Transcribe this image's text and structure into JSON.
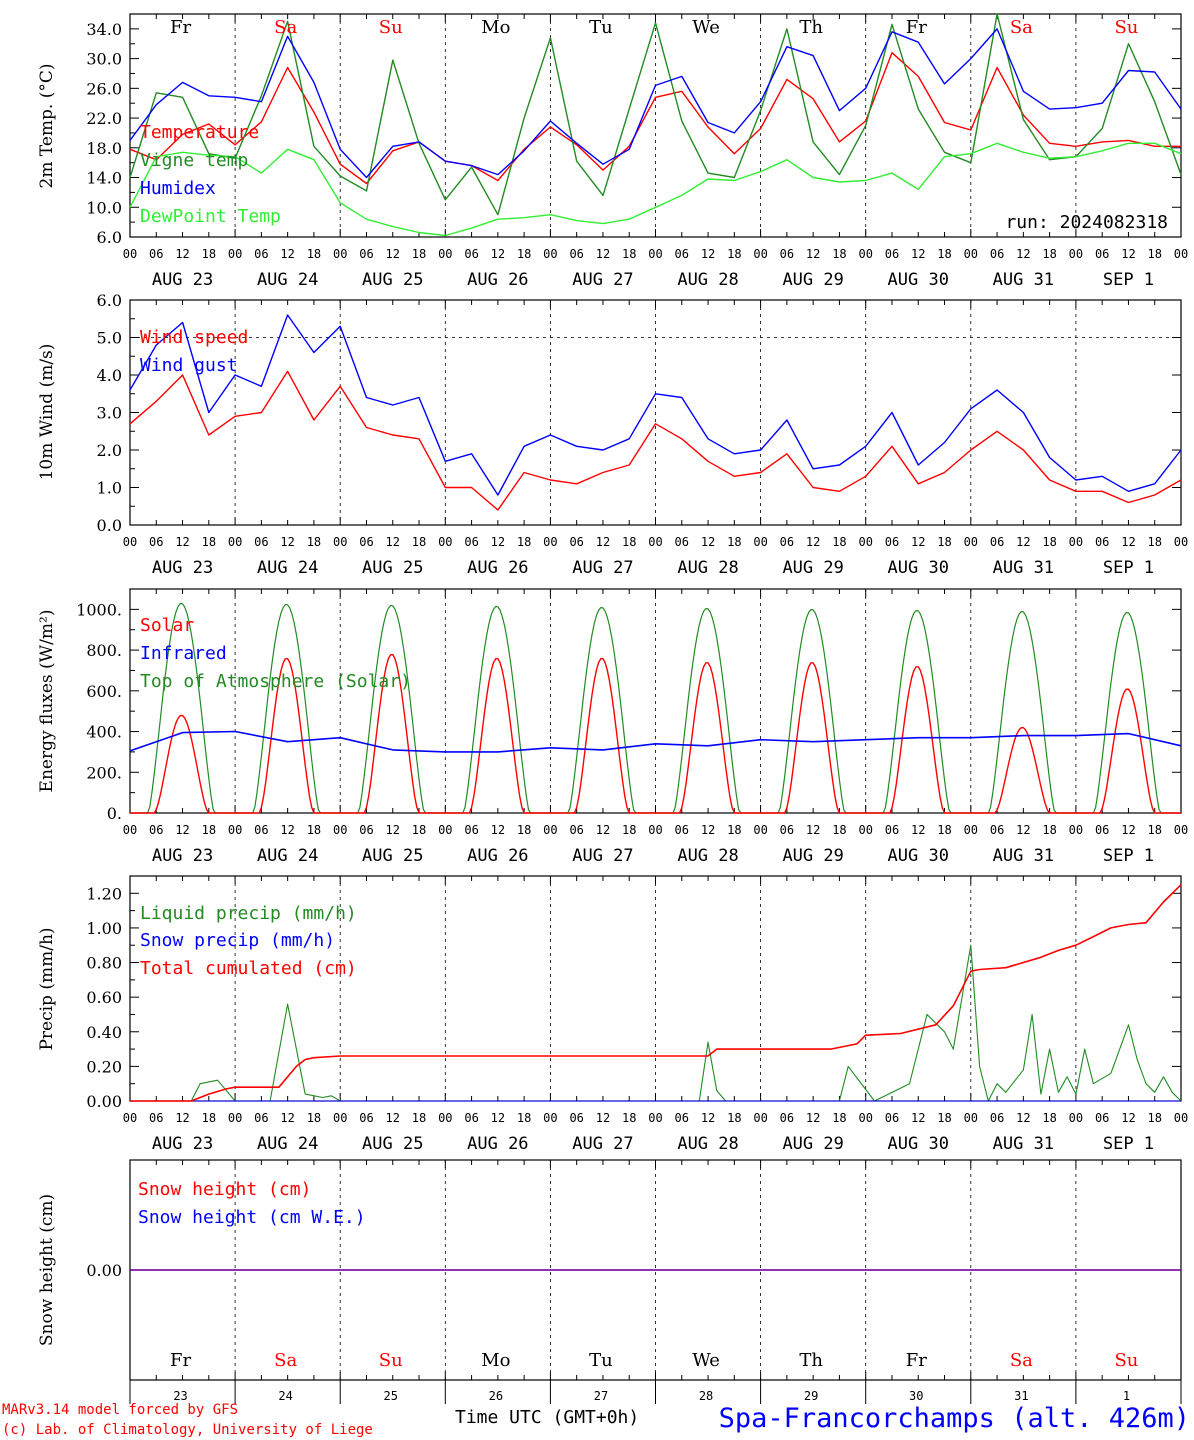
{
  "colors": {
    "red": "#ff0000",
    "green": "#228b22",
    "blue": "#0000ff",
    "lightgreen": "#33ee33",
    "purple": "#7f00a0",
    "black": "#000000"
  },
  "days_of_week": [
    {
      "label": "Fr",
      "color": "black"
    },
    {
      "label": "Sa",
      "color": "red"
    },
    {
      "label": "Su",
      "color": "red"
    },
    {
      "label": "Mo",
      "color": "black"
    },
    {
      "label": "Tu",
      "color": "black"
    },
    {
      "label": "We",
      "color": "black"
    },
    {
      "label": "Th",
      "color": "black"
    },
    {
      "label": "Fr",
      "color": "black"
    },
    {
      "label": "Sa",
      "color": "red"
    },
    {
      "label": "Su",
      "color": "red"
    }
  ],
  "date_labels": [
    "AUG 23",
    "AUG 24",
    "AUG 25",
    "AUG 26",
    "AUG 27",
    "AUG 28",
    "AUG 29",
    "AUG 30",
    "AUG 31",
    "SEP  1"
  ],
  "day_numbers": [
    "23",
    "24",
    "25",
    "26",
    "27",
    "28",
    "29",
    "30",
    "31",
    "1"
  ],
  "hour_labels": [
    "00",
    "06",
    "12",
    "18"
  ],
  "run_label": "run: 2024082318",
  "footer": {
    "model_line": "MARv3.14 model forced by GFS",
    "credit_line": "(c) Lab. of Climatology, University of Liege",
    "time_axis": "Time UTC (GMT+0h)",
    "station": "Spa-Francorchamps (alt. 426m)"
  },
  "chart_data": [
    {
      "type": "line",
      "ylabel": "2m Temp. (°C)",
      "ylim": [
        6,
        36
      ],
      "yticks": [
        "6.0",
        "10.0",
        "14.0",
        "18.0",
        "22.0",
        "26.0",
        "30.0",
        "34.0"
      ],
      "x_unit": "hours since AUG 23 00 UTC",
      "series": [
        {
          "name": "Temperature",
          "color": "red",
          "x": [
            0,
            6,
            12,
            18,
            24,
            30,
            36,
            42,
            48,
            54,
            60,
            66,
            72,
            78,
            84,
            90,
            96,
            102,
            108,
            114,
            120,
            126,
            132,
            138,
            144,
            150,
            156,
            162,
            168,
            174,
            180,
            186,
            192,
            198,
            204,
            210,
            216,
            222,
            228,
            234,
            240
          ],
          "y": [
            17.8,
            16.4,
            19.8,
            21.2,
            18.4,
            21.5,
            28.8,
            22.8,
            15.8,
            13.2,
            17.6,
            18.8,
            16.2,
            15.6,
            13.6,
            17.8,
            20.8,
            18.4,
            15.0,
            18.2,
            24.8,
            25.6,
            20.8,
            17.2,
            20.6,
            27.2,
            24.6,
            18.8,
            21.6,
            30.8,
            27.6,
            21.4,
            20.4,
            28.8,
            22.4,
            18.6,
            18.2,
            18.8,
            19.0,
            18.2,
            18.2
          ]
        },
        {
          "name": "Vigne temp",
          "color": "green",
          "x": [
            0,
            6,
            12,
            18,
            24,
            30,
            36,
            42,
            48,
            54,
            60,
            66,
            72,
            78,
            84,
            90,
            96,
            102,
            108,
            114,
            120,
            126,
            132,
            138,
            144,
            150,
            156,
            162,
            168,
            174,
            180,
            186,
            192,
            198,
            204,
            210,
            216,
            222,
            228,
            234,
            240
          ],
          "y": [
            14.0,
            25.4,
            24.8,
            17.2,
            16.6,
            25.0,
            35.0,
            18.2,
            14.2,
            12.2,
            29.8,
            18.6,
            11.0,
            15.4,
            9.0,
            22.0,
            32.8,
            16.2,
            11.6,
            23.2,
            34.8,
            21.6,
            14.6,
            14.0,
            23.0,
            34.0,
            18.8,
            14.4,
            21.0,
            34.6,
            23.2,
            17.4,
            16.0,
            38.0,
            21.8,
            16.4,
            16.8,
            20.6,
            32.0,
            24.2,
            14.4
          ]
        },
        {
          "name": "Humidex",
          "color": "blue",
          "x": [
            0,
            6,
            12,
            18,
            24,
            30,
            36,
            42,
            48,
            54,
            60,
            66,
            72,
            78,
            84,
            90,
            96,
            102,
            108,
            114,
            120,
            126,
            132,
            138,
            144,
            150,
            156,
            162,
            168,
            174,
            180,
            186,
            192,
            198,
            204,
            210,
            216,
            222,
            228,
            234,
            240
          ],
          "y": [
            19.0,
            23.8,
            26.8,
            25.0,
            24.8,
            24.2,
            33.0,
            26.8,
            17.8,
            14.0,
            18.2,
            18.8,
            16.2,
            15.6,
            14.4,
            17.6,
            21.6,
            18.6,
            15.8,
            17.8,
            26.4,
            27.6,
            21.4,
            20.0,
            24.2,
            31.6,
            30.4,
            23.0,
            26.0,
            33.6,
            32.2,
            26.6,
            30.0,
            34.0,
            25.6,
            23.2,
            23.4,
            24.0,
            28.4,
            28.2,
            23.2
          ]
        },
        {
          "name": "DewPoint Temp",
          "color": "lightgreen",
          "x": [
            0,
            6,
            12,
            18,
            24,
            30,
            36,
            42,
            48,
            54,
            60,
            66,
            72,
            78,
            84,
            90,
            96,
            102,
            108,
            114,
            120,
            126,
            132,
            138,
            144,
            150,
            156,
            162,
            168,
            174,
            180,
            186,
            192,
            198,
            204,
            210,
            216,
            222,
            228,
            234,
            240
          ],
          "y": [
            10.0,
            16.8,
            17.4,
            17.0,
            16.8,
            14.6,
            17.8,
            16.4,
            10.6,
            8.4,
            7.4,
            6.6,
            6.2,
            7.2,
            8.4,
            8.6,
            9.0,
            8.2,
            7.8,
            8.4,
            10.0,
            11.6,
            13.8,
            13.6,
            14.8,
            16.4,
            14.0,
            13.4,
            13.6,
            14.6,
            12.4,
            16.8,
            17.2,
            18.6,
            17.4,
            16.6,
            16.8,
            17.6,
            18.6,
            18.6,
            17.2
          ]
        }
      ],
      "annotation": "run: 2024082318"
    },
    {
      "type": "line",
      "ylabel": "10m Wind (m/s)",
      "ylim": [
        0,
        6
      ],
      "yticks": [
        "0.0",
        "1.0",
        "2.0",
        "3.0",
        "4.0",
        "5.0",
        "6.0"
      ],
      "reference_line": 5.0,
      "series": [
        {
          "name": "Wind speed",
          "color": "red",
          "x": [
            0,
            6,
            12,
            18,
            24,
            30,
            36,
            42,
            48,
            54,
            60,
            66,
            72,
            78,
            84,
            90,
            96,
            102,
            108,
            114,
            120,
            126,
            132,
            138,
            144,
            150,
            156,
            162,
            168,
            174,
            180,
            186,
            192,
            198,
            204,
            210,
            216,
            222,
            228,
            234,
            240
          ],
          "y": [
            2.7,
            3.3,
            4.0,
            2.4,
            2.9,
            3.0,
            4.1,
            2.8,
            3.7,
            2.6,
            2.4,
            2.3,
            1.0,
            1.0,
            0.4,
            1.4,
            1.2,
            1.1,
            1.4,
            1.6,
            2.7,
            2.3,
            1.7,
            1.3,
            1.4,
            1.9,
            1.0,
            0.9,
            1.3,
            2.1,
            1.1,
            1.4,
            2.0,
            2.5,
            2.0,
            1.2,
            0.9,
            0.9,
            0.6,
            0.8,
            1.2
          ]
        },
        {
          "name": "Wind gust",
          "color": "blue",
          "x": [
            0,
            6,
            12,
            18,
            24,
            30,
            36,
            42,
            48,
            54,
            60,
            66,
            72,
            78,
            84,
            90,
            96,
            102,
            108,
            114,
            120,
            126,
            132,
            138,
            144,
            150,
            156,
            162,
            168,
            174,
            180,
            186,
            192,
            198,
            204,
            210,
            216,
            222,
            228,
            234,
            240
          ],
          "y": [
            3.6,
            4.8,
            5.4,
            3.0,
            4.0,
            3.7,
            5.6,
            4.6,
            5.3,
            3.4,
            3.2,
            3.4,
            1.7,
            1.9,
            0.8,
            2.1,
            2.4,
            2.1,
            2.0,
            2.3,
            3.5,
            3.4,
            2.3,
            1.9,
            2.0,
            2.8,
            1.5,
            1.6,
            2.1,
            3.0,
            1.6,
            2.2,
            3.1,
            3.6,
            3.0,
            1.8,
            1.2,
            1.3,
            0.9,
            1.1,
            2.0
          ]
        }
      ]
    },
    {
      "type": "line",
      "ylabel": "Energy fluxes (W/m²)",
      "ylim": [
        0,
        1100
      ],
      "yticks": [
        "0.",
        "200.",
        "400.",
        "600.",
        "800.",
        "1000."
      ],
      "series": [
        {
          "name": "Solar",
          "color": "red",
          "solar_peaks_per_day": [
            480,
            760,
            780,
            760,
            760,
            740,
            740,
            720,
            420,
            610
          ]
        },
        {
          "name": "Infrared",
          "color": "blue",
          "x": [
            0,
            12,
            24,
            36,
            48,
            60,
            72,
            84,
            96,
            108,
            120,
            132,
            144,
            156,
            168,
            180,
            192,
            204,
            216,
            228,
            240
          ],
          "y": [
            305,
            395,
            400,
            350,
            370,
            310,
            300,
            300,
            320,
            310,
            340,
            330,
            360,
            350,
            360,
            370,
            370,
            380,
            380,
            390,
            330
          ]
        },
        {
          "name": "Top of Atmosphere (Solar)",
          "color": "green",
          "toa_peaks_per_day": [
            1030,
            1025,
            1020,
            1015,
            1010,
            1005,
            1000,
            995,
            990,
            985
          ]
        }
      ]
    },
    {
      "type": "line",
      "ylabel": "Precip (mm/h)",
      "ylim": [
        0,
        1.3
      ],
      "yticks": [
        "0.00",
        "0.20",
        "0.40",
        "0.60",
        "0.80",
        "1.00",
        "1.20"
      ],
      "series": [
        {
          "name": "Liquid precip (mm/h)",
          "color": "green",
          "x": [
            0,
            14,
            16,
            20,
            24,
            32,
            36,
            40,
            44,
            46,
            48,
            50,
            130,
            132,
            134,
            136,
            162,
            164,
            170,
            178,
            182,
            186,
            188,
            192,
            194,
            196,
            198,
            200,
            204,
            206,
            208,
            210,
            212,
            214,
            216,
            218,
            220,
            224,
            226,
            228,
            230,
            232,
            234,
            236,
            238,
            240
          ],
          "y": [
            0,
            0,
            0.1,
            0.12,
            0,
            0,
            0.56,
            0.04,
            0.02,
            0.03,
            0,
            0,
            0,
            0.34,
            0.06,
            0,
            0,
            0.2,
            0,
            0.1,
            0.5,
            0.4,
            0.3,
            0.9,
            0.2,
            0,
            0.1,
            0.05,
            0.18,
            0.5,
            0.04,
            0.3,
            0.05,
            0.14,
            0.04,
            0.3,
            0.1,
            0.16,
            0.3,
            0.44,
            0.24,
            0.1,
            0.05,
            0.14,
            0.05,
            0
          ]
        },
        {
          "name": "Snow precip (mm/h)",
          "color": "blue",
          "x": [
            0,
            240
          ],
          "y": [
            0,
            0
          ]
        },
        {
          "name": "Total cumulated (cm)",
          "color": "red",
          "x": [
            0,
            14,
            18,
            22,
            24,
            28,
            34,
            38,
            40,
            42,
            48,
            60,
            72,
            84,
            96,
            108,
            120,
            132,
            134,
            150,
            160,
            166,
            168,
            176,
            184,
            188,
            192,
            194,
            200,
            208,
            212,
            216,
            220,
            224,
            228,
            232,
            236,
            240
          ],
          "y": [
            0,
            0,
            0.04,
            0.07,
            0.08,
            0.08,
            0.08,
            0.2,
            0.24,
            0.25,
            0.26,
            0.26,
            0.26,
            0.26,
            0.26,
            0.26,
            0.26,
            0.26,
            0.3,
            0.3,
            0.3,
            0.33,
            0.38,
            0.39,
            0.44,
            0.55,
            0.75,
            0.76,
            0.77,
            0.83,
            0.87,
            0.9,
            0.95,
            1.0,
            1.02,
            1.03,
            1.15,
            1.25
          ]
        }
      ]
    },
    {
      "type": "line",
      "ylabel": "Snow height (cm)",
      "yticks": [
        "0.00"
      ],
      "series": [
        {
          "name": "Snow height (cm)",
          "color": "red",
          "x": [
            0,
            240
          ],
          "y": [
            0,
            0
          ]
        },
        {
          "name": "Snow height (cm W.E.)",
          "color": "blue",
          "x": [
            0,
            240
          ],
          "y": [
            0,
            0
          ]
        }
      ]
    }
  ]
}
